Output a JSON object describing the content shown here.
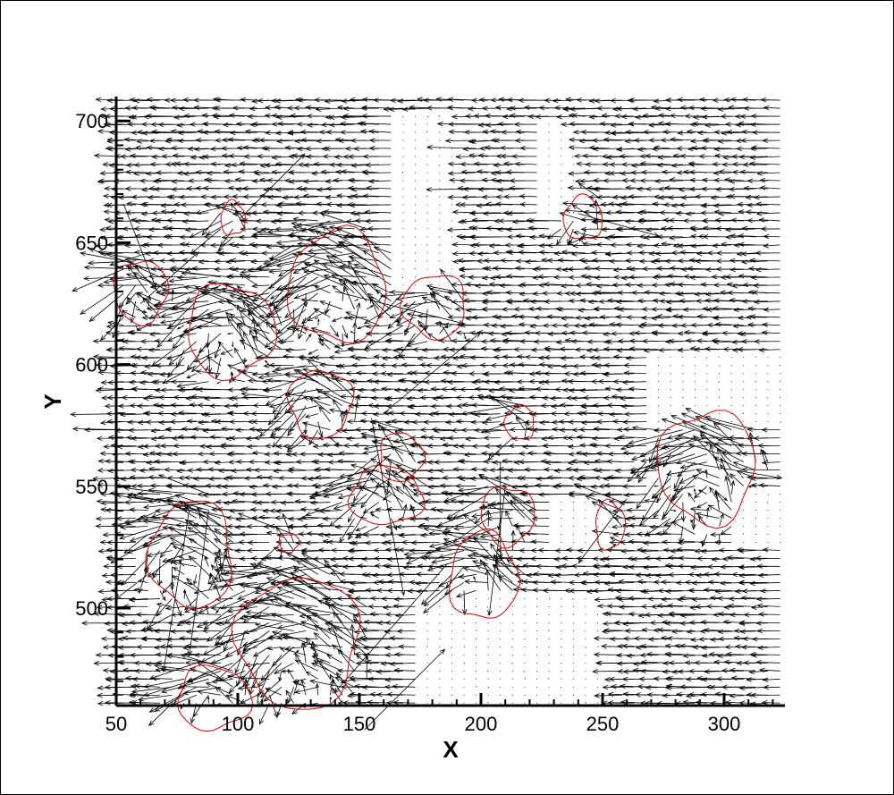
{
  "chart_data": {
    "type": "vector-field",
    "xlabel": "X",
    "ylabel": "Y",
    "xlim": [
      50,
      325
    ],
    "ylim": [
      460,
      710
    ],
    "xticks": [
      "50",
      "100",
      "150",
      "200",
      "250",
      "300"
    ],
    "yticks": [
      "500",
      "550",
      "600",
      "650",
      "700"
    ],
    "grid": false,
    "legend": "none",
    "vector_color": "#000000",
    "contour_color": "#e00000",
    "grid_spacing": {
      "dx": 5.0,
      "dy": 3.3
    },
    "background_flow": {
      "u": -9,
      "v": 0
    },
    "calm_regions": [
      {
        "x": [
          165,
          195
        ],
        "y": [
          630,
          705
        ]
      },
      {
        "x": [
          225,
          245
        ],
        "y": [
          660,
          700
        ]
      },
      {
        "x": [
          270,
          325
        ],
        "y": [
          575,
          605
        ]
      },
      {
        "x": [
          305,
          325
        ],
        "y": [
          525,
          550
        ]
      },
      {
        "x": [
          175,
          255
        ],
        "y": [
          460,
          505
        ]
      },
      {
        "x": [
          230,
          255
        ],
        "y": [
          525,
          545
        ]
      },
      {
        "x": [
          270,
          300
        ],
        "y": [
          580,
          600
        ]
      }
    ],
    "vortex_contours": [
      {
        "cx": 60,
        "cy": 630,
        "rx": 11,
        "ry": 13
      },
      {
        "cx": 97,
        "cy": 614,
        "rx": 18,
        "ry": 19
      },
      {
        "cx": 98,
        "cy": 660,
        "rx": 5,
        "ry": 7
      },
      {
        "cx": 141,
        "cy": 632,
        "rx": 20,
        "ry": 23
      },
      {
        "cx": 181,
        "cy": 624,
        "rx": 13,
        "ry": 13
      },
      {
        "cx": 134,
        "cy": 584,
        "rx": 13,
        "ry": 14
      },
      {
        "cx": 167,
        "cy": 562,
        "rx": 9,
        "ry": 10
      },
      {
        "cx": 161,
        "cy": 546,
        "rx": 15,
        "ry": 12
      },
      {
        "cx": 216,
        "cy": 576,
        "rx": 6,
        "ry": 7
      },
      {
        "cx": 293,
        "cy": 558,
        "rx": 20,
        "ry": 23
      },
      {
        "cx": 211,
        "cy": 538,
        "rx": 11,
        "ry": 12
      },
      {
        "cx": 253,
        "cy": 534,
        "rx": 6,
        "ry": 10
      },
      {
        "cx": 201,
        "cy": 513,
        "rx": 14,
        "ry": 18
      },
      {
        "cx": 81,
        "cy": 522,
        "rx": 17,
        "ry": 22
      },
      {
        "cx": 125,
        "cy": 486,
        "rx": 25,
        "ry": 27
      },
      {
        "cx": 121,
        "cy": 527,
        "rx": 4,
        "ry": 4
      },
      {
        "cx": 90,
        "cy": 463,
        "rx": 15,
        "ry": 13
      },
      {
        "cx": 242,
        "cy": 660,
        "rx": 8,
        "ry": 9
      }
    ],
    "notable_vectors": [
      {
        "x": 53,
        "y": 666,
        "u": 10,
        "v": -26
      },
      {
        "x": 101,
        "y": 660,
        "u": 20,
        "v": 20
      },
      {
        "x": 240,
        "y": 662,
        "u": 25,
        "v": -7
      },
      {
        "x": 80,
        "y": 540,
        "u": -8,
        "v": -50
      },
      {
        "x": 88,
        "y": 540,
        "u": -6,
        "v": -45
      },
      {
        "x": 155,
        "y": 578,
        "u": 10,
        "v": -55
      },
      {
        "x": 208,
        "y": 560,
        "u": 0,
        "v": -30
      },
      {
        "x": 210,
        "y": 550,
        "u": -5,
        "v": -40
      },
      {
        "x": 186,
        "y": 518,
        "u": -35,
        "v": -40
      },
      {
        "x": 152,
        "y": 450,
        "u": 25,
        "v": 25
      },
      {
        "x": 160,
        "y": 580,
        "u": 30,
        "v": 25
      },
      {
        "x": 140,
        "y": 630,
        "u": 40,
        "v": -10
      },
      {
        "x": 284,
        "y": 560,
        "u": 30,
        "v": -5
      },
      {
        "x": 260,
        "y": 545,
        "u": -15,
        "v": -20
      },
      {
        "x": 60,
        "y": 625,
        "u": 18,
        "v": 16
      }
    ]
  }
}
